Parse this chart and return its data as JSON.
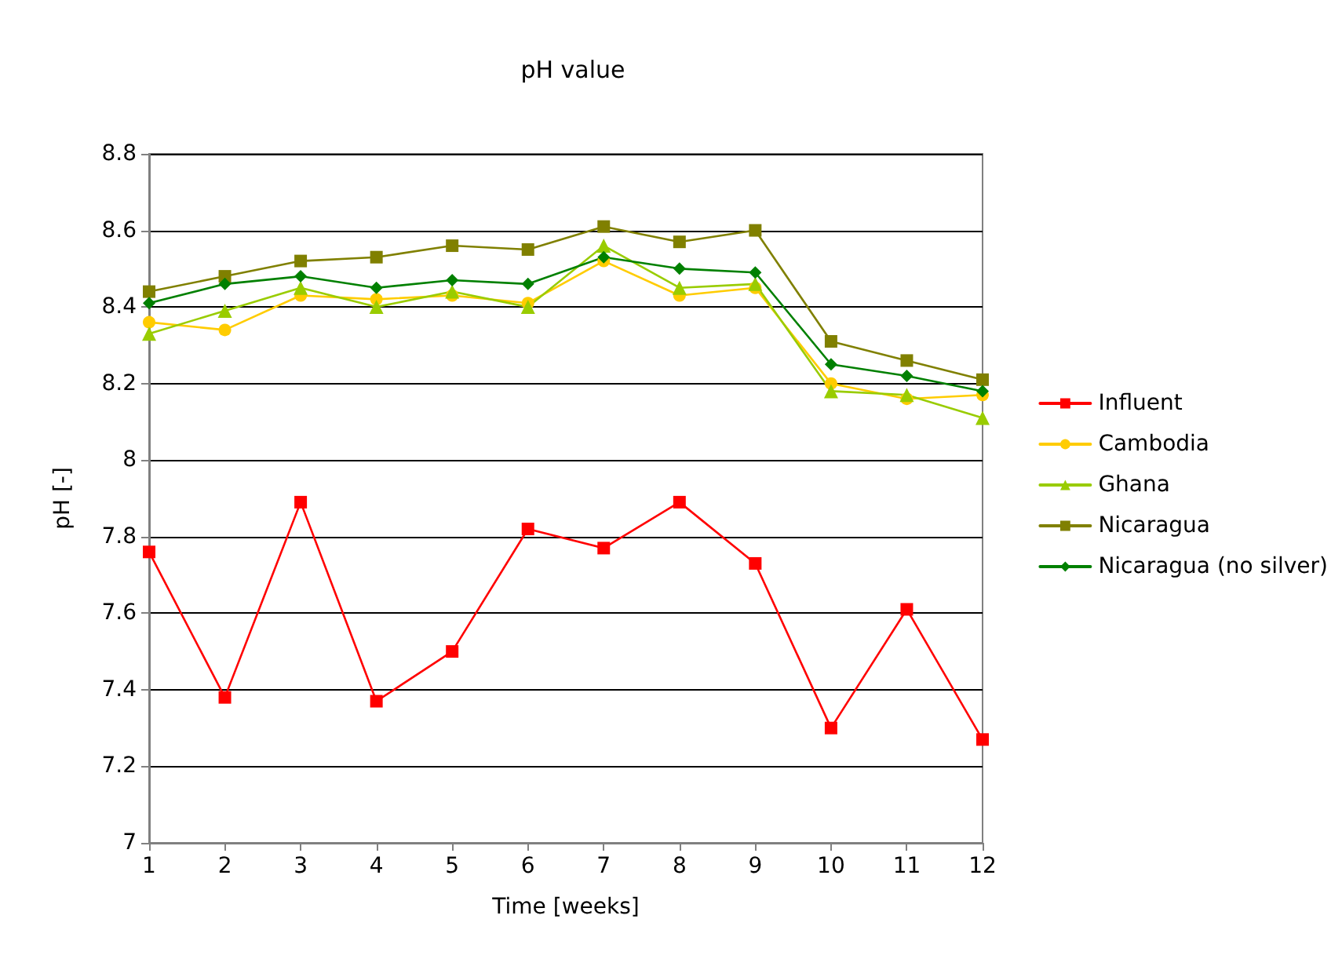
{
  "chart_data": {
    "type": "line",
    "title": "pH value",
    "xlabel": "Time [weeks]",
    "ylabel": "pH [-]",
    "x": [
      1,
      2,
      3,
      4,
      5,
      6,
      7,
      8,
      9,
      10,
      11,
      12
    ],
    "xlim": [
      1,
      12
    ],
    "xticks": [
      1,
      2,
      3,
      4,
      5,
      6,
      7,
      8,
      9,
      10,
      11,
      12
    ],
    "ylim": [
      7,
      8.8
    ],
    "yticks": [
      7,
      7.2,
      7.4,
      7.6,
      7.8,
      8,
      8.2,
      8.4,
      8.6,
      8.8
    ],
    "grid": "y",
    "legend": "right",
    "series": [
      {
        "name": "Influent",
        "color": "#ff0000",
        "marker": "square",
        "values": [
          7.76,
          7.38,
          7.89,
          7.37,
          7.5,
          7.82,
          7.77,
          7.89,
          7.73,
          7.3,
          7.61,
          7.27
        ]
      },
      {
        "name": "Cambodia",
        "color": "#ffcc00",
        "marker": "circle",
        "values": [
          8.36,
          8.34,
          8.43,
          8.42,
          8.43,
          8.41,
          8.52,
          8.43,
          8.45,
          8.2,
          8.16,
          8.17
        ]
      },
      {
        "name": "Ghana",
        "color": "#99cc00",
        "marker": "triangle",
        "values": [
          8.33,
          8.39,
          8.45,
          8.4,
          8.44,
          8.4,
          8.56,
          8.45,
          8.46,
          8.18,
          8.17,
          8.11
        ]
      },
      {
        "name": "Nicaragua",
        "color": "#808000",
        "marker": "square",
        "values": [
          8.44,
          8.48,
          8.52,
          8.53,
          8.56,
          8.55,
          8.61,
          8.57,
          8.6,
          8.31,
          8.26,
          8.21
        ]
      },
      {
        "name": "Nicaragua (no silver)",
        "color": "#008000",
        "marker": "diamond",
        "values": [
          8.41,
          8.46,
          8.48,
          8.45,
          8.47,
          8.46,
          8.53,
          8.5,
          8.49,
          8.25,
          8.22,
          8.18
        ]
      }
    ]
  }
}
